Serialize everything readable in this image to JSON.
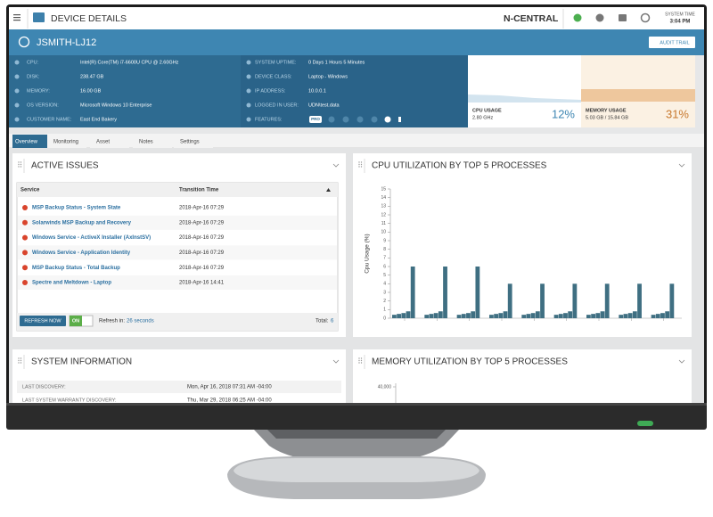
{
  "header": {
    "title": "DEVICE DETAILS",
    "brand": "N-CENTRAL",
    "system_time_label": "SYSTEM TIME",
    "system_time": "3:04 PM"
  },
  "device": {
    "name": "JSMITH-LJ12",
    "audit_trail": "AUDIT TRAIL"
  },
  "properties_left": [
    [
      "CPU:",
      "Intel(R) Core(TM) i7-6600U CPU @ 2.60GHz"
    ],
    [
      "DISK:",
      "238.47 GB"
    ],
    [
      "MEMORY:",
      "16.00 GB"
    ],
    [
      "OS VERSION:",
      "Microsoft Windows 10 Enterprise"
    ],
    [
      "CUSTOMER NAME:",
      "East End Bakery"
    ]
  ],
  "properties_right": [
    [
      "SYSTEM UPTIME:",
      "0 Days 1 Hours 5 Minutes"
    ],
    [
      "DEVICE CLASS:",
      "Laptop - Windows"
    ],
    [
      "IP ADDRESS:",
      "10.0.0.1"
    ],
    [
      "LOGGED IN USER:",
      "UDN\\test.data"
    ]
  ],
  "features": {
    "label": "FEATURES:",
    "badge": "PRO"
  },
  "cpu_usage": {
    "label": "CPU USAGE",
    "detail": "2.80 GHz",
    "percent": "12%"
  },
  "memory_usage": {
    "label": "MEMORY USAGE",
    "detail": "5.03 GB / 15.84 GB",
    "percent": "31%"
  },
  "tabs": [
    "Overview",
    "Monitoring",
    "Asset",
    "Notes",
    "Settings"
  ],
  "active_issues": {
    "title": "ACTIVE ISSUES",
    "columns": [
      "Service",
      "Transition Time"
    ],
    "rows": [
      [
        "MSP Backup Status - System State",
        "2018-Apr-16 07:29"
      ],
      [
        "Solarwinds MSP Backup and Recovery",
        "2018-Apr-16 07:29"
      ],
      [
        "Windows Service - ActiveX Installer (AxInstSV)",
        "2018-Apr-16 07:29"
      ],
      [
        "Windows Service - Application Identity",
        "2018-Apr-16 07:29"
      ],
      [
        "MSP Backup Status - Total Backup",
        "2018-Apr-16 07:29"
      ],
      [
        "Spectre and Meltdown - Laptop",
        "2018-Apr-16 14:41"
      ]
    ],
    "refresh_button": "REFRESH NOW",
    "toggle": "ON",
    "refresh_label": "Refresh in:",
    "refresh_value": "26 seconds",
    "total_label": "Total:",
    "total_value": "6"
  },
  "system_information": {
    "title": "SYSTEM INFORMATION",
    "rows": [
      [
        "LAST DISCOVERY:",
        "Mon, Apr 16, 2018 07:31 AM -04:00"
      ],
      [
        "LAST SYSTEM WARRANTY DISCOVERY:",
        "Thu, Mar 29, 2018 06:25 AM -04:00"
      ]
    ]
  },
  "memory_panel": {
    "title": "MEMORY UTILIZATION BY TOP 5 PROCESSES",
    "yticks": [
      {
        "value": 40000,
        "label": "40,000"
      }
    ]
  },
  "chart_data": {
    "type": "bar",
    "title": "CPU UTILIZATION BY TOP 5 PROCESSES",
    "y_label": "Cpu Usage (%)",
    "categories": [
      null,
      null,
      null,
      null,
      null,
      null,
      null,
      null,
      null
    ],
    "series": [
      {
        "color": "#3f6f82",
        "values": [
          0.4,
          0.4,
          0.4,
          0.4,
          0.4,
          0.4,
          0.4,
          0.4,
          0.4
        ]
      },
      {
        "color": "#3f6f82",
        "values": [
          0.5,
          0.5,
          0.5,
          0.5,
          0.5,
          0.5,
          0.5,
          0.5,
          0.5
        ]
      },
      {
        "color": "#3f6f82",
        "values": [
          0.6,
          0.6,
          0.6,
          0.6,
          0.6,
          0.6,
          0.6,
          0.6,
          0.6
        ]
      },
      {
        "color": "#3f6f82",
        "values": [
          0.8,
          0.8,
          0.8,
          0.8,
          0.8,
          0.8,
          0.8,
          0.8,
          0.8
        ]
      },
      {
        "color": "#3f6f82",
        "values": [
          6,
          6,
          6,
          4,
          4,
          4,
          4,
          4,
          4
        ]
      }
    ],
    "ylim": [
      0,
      15
    ],
    "yticks": [
      0,
      1,
      2,
      3,
      4,
      5,
      6,
      7,
      8,
      9,
      10,
      11,
      12,
      13,
      14,
      15
    ]
  }
}
